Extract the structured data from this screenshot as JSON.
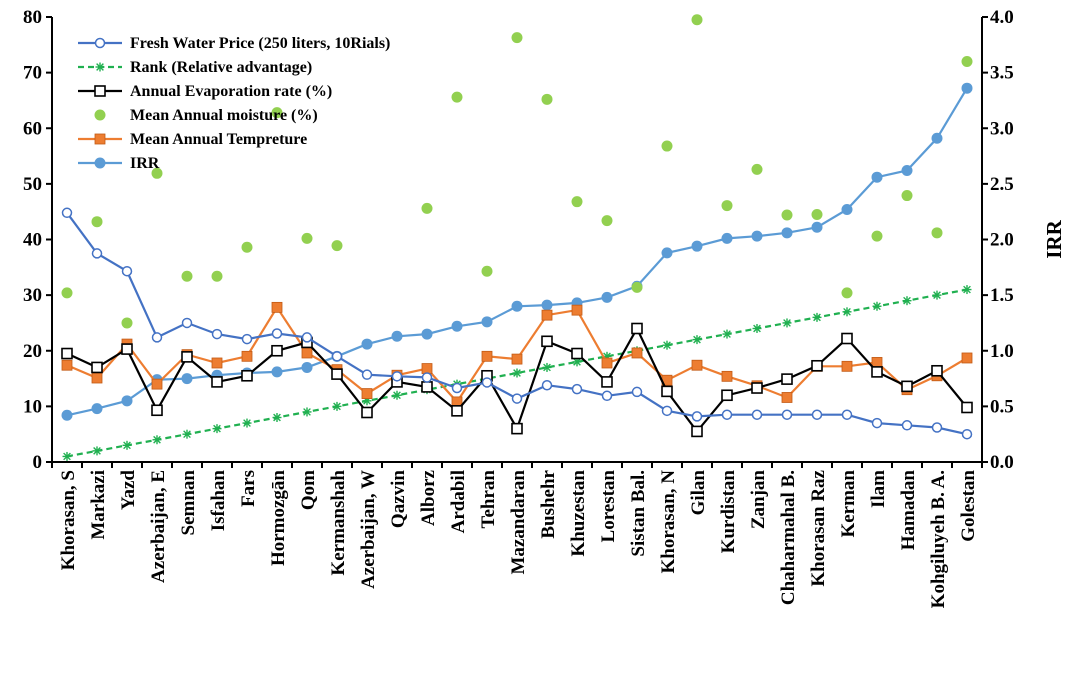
{
  "chart_data": {
    "type": "line",
    "categories": [
      "Khorasan, S",
      "Markazi",
      "Yazd",
      "Azerbaijan, E",
      "Semnan",
      "Isfahan",
      "Fars",
      "Hormozgān",
      "Qom",
      "Kermanshah",
      "Azerbaijan, W",
      "Qazvin",
      "Alborz",
      "Ardabil",
      "Tehran",
      "Mazandaran",
      "Bushehr",
      "Khuzestan",
      "Lorestan",
      "Sistan Bal.",
      "Khorasan, N",
      "Gilan",
      "Kurdistan",
      "Zanjan",
      "Chaharmahal B.",
      "Khorasan Raz",
      "Kerman",
      "Ilam",
      "Hamadan",
      "Kohgiluyeh B. A.",
      "Golestan"
    ],
    "y_left": {
      "ylim": [
        0,
        80
      ],
      "ticks": [
        "0",
        "10",
        "20",
        "30",
        "40",
        "50",
        "60",
        "70",
        "80"
      ]
    },
    "y_right": {
      "label": "IRR",
      "ylim": [
        0,
        4
      ],
      "ticks": [
        "0.0",
        "0.5",
        "1.0",
        "1.5",
        "2.0",
        "2.5",
        "3.0",
        "3.5",
        "4.0"
      ]
    },
    "grid": false,
    "legend_position": "top-left",
    "series": [
      {
        "name": "Fresh Water Price (250 liters, 10Rials)",
        "axis": "left",
        "color": "#4472c4",
        "marker": "open-circle",
        "line": "solid",
        "values": [
          44.8,
          37.5,
          34.3,
          22.4,
          25.0,
          23.0,
          22.1,
          23.1,
          22.4,
          19.0,
          15.7,
          15.4,
          15.2,
          13.3,
          14.3,
          11.4,
          13.8,
          13.1,
          11.9,
          12.6,
          9.2,
          8.2,
          8.5,
          8.5,
          8.5,
          8.5,
          8.5,
          7.0,
          6.6,
          6.2,
          5.0
        ]
      },
      {
        "name": "Rank (Relative advantage)",
        "axis": "left",
        "color": "#20b050",
        "marker": "star",
        "line": "dashed",
        "values": [
          1,
          2,
          3,
          4,
          5,
          6,
          7,
          8,
          9,
          10,
          11,
          12,
          13,
          14,
          15,
          16,
          17,
          18,
          19,
          20,
          21,
          22,
          23,
          24,
          25,
          26,
          27,
          28,
          29,
          30,
          31
        ]
      },
      {
        "name": "Annual Evaporation rate (%)",
        "axis": "left",
        "color": "#000000",
        "marker": "open-square",
        "line": "solid",
        "values": [
          19.5,
          17.0,
          20.3,
          9.3,
          18.9,
          14.4,
          15.5,
          20.0,
          21.5,
          15.8,
          8.9,
          14.4,
          13.5,
          9.2,
          15.5,
          6.0,
          21.7,
          19.5,
          14.4,
          24.0,
          12.7,
          5.5,
          12.0,
          13.3,
          14.9,
          17.3,
          22.2,
          16.2,
          13.6,
          16.4,
          9.8
        ]
      },
      {
        "name": "Mean Annual moisture (%)",
        "axis": "left",
        "color": "#92d050",
        "marker": "filled-circle",
        "line": "none",
        "values": [
          30.4,
          43.2,
          25.0,
          51.9,
          33.4,
          33.4,
          38.6,
          62.8,
          40.2,
          38.9,
          null,
          null,
          45.6,
          65.6,
          34.3,
          76.3,
          65.2,
          46.8,
          43.4,
          31.4,
          56.8,
          79.5,
          46.1,
          52.6,
          44.4,
          44.5,
          30.4,
          40.6,
          47.9,
          41.2,
          72.0
        ]
      },
      {
        "name": "Mean Annual Tempreture",
        "axis": "left",
        "color": "#ed7d31",
        "marker": "filled-square",
        "line": "solid",
        "values": [
          17.4,
          15.1,
          21.2,
          14.0,
          19.3,
          17.8,
          19.0,
          27.8,
          19.6,
          16.6,
          12.3,
          15.6,
          16.8,
          10.8,
          19.0,
          18.5,
          26.4,
          27.3,
          17.8,
          19.6,
          14.7,
          17.4,
          15.4,
          13.7,
          11.6,
          17.2,
          17.2,
          17.9,
          13.0,
          15.5,
          18.7
        ]
      },
      {
        "name": "IRR",
        "axis": "right",
        "color": "#5b9bd5",
        "marker": "filled-circle",
        "line": "solid",
        "values": [
          0.42,
          0.48,
          0.55,
          0.74,
          0.75,
          0.78,
          0.8,
          0.81,
          0.85,
          0.95,
          1.06,
          1.13,
          1.15,
          1.22,
          1.26,
          1.4,
          1.41,
          1.43,
          1.48,
          1.58,
          1.88,
          1.94,
          2.01,
          2.03,
          2.06,
          2.11,
          2.27,
          2.56,
          2.62,
          2.91,
          3.36
        ]
      }
    ]
  }
}
